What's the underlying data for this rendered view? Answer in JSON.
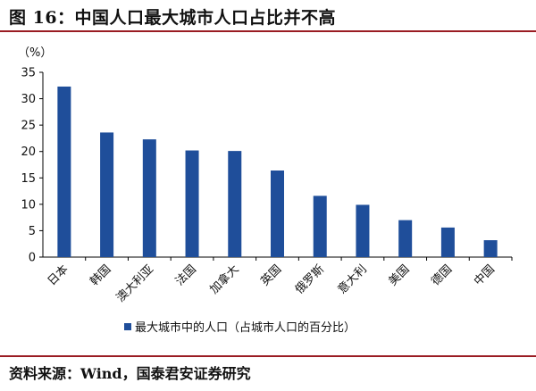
{
  "title": "图 16：中国人口最大城市人口占比并不高",
  "source": "资料来源：Wind，国泰君安证券研究",
  "colors": {
    "bar": "#1f4e9a",
    "rule": "#9a1c23",
    "axis": "#000000"
  },
  "chart_data": {
    "type": "bar",
    "unit_label": "（%）",
    "categories": [
      "日本",
      "韩国",
      "澳大利亚",
      "法国",
      "加拿大",
      "英国",
      "俄罗斯",
      "意大利",
      "美国",
      "德国",
      "中国"
    ],
    "series": [
      {
        "name": "最大城市中的人口（占城市人口的百分比）",
        "values": [
          32.3,
          23.6,
          22.3,
          20.2,
          20.1,
          16.4,
          11.6,
          9.9,
          7.0,
          5.6,
          3.2
        ]
      }
    ],
    "ylim": [
      0,
      35
    ],
    "yticks": [
      0,
      5,
      10,
      15,
      20,
      25,
      30,
      35
    ],
    "grid": false,
    "legend_position": "bottom"
  }
}
